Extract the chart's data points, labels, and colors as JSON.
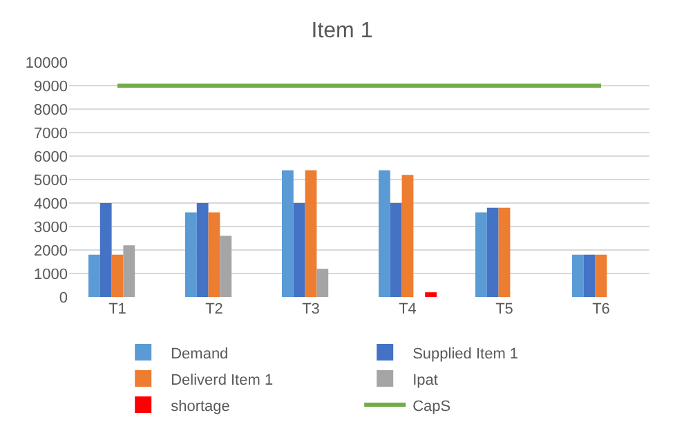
{
  "chart_data": {
    "type": "bar",
    "title": "Item 1",
    "categories": [
      "T1",
      "T2",
      "T3",
      "T4",
      "T5",
      "T6"
    ],
    "series": [
      {
        "name": "Demand",
        "color": "#5b9bd5",
        "values": [
          1800,
          3600,
          5400,
          5400,
          3600,
          1800
        ]
      },
      {
        "name": "Supplied Item 1",
        "color": "#4472c4",
        "values": [
          4000,
          4000,
          4000,
          4000,
          3800,
          1800
        ]
      },
      {
        "name": "Deliverd Item 1",
        "color": "#ed7d31",
        "values": [
          1800,
          3600,
          5400,
          5200,
          3800,
          1800
        ]
      },
      {
        "name": "Ipat",
        "color": "#a5a5a5",
        "values": [
          2200,
          2600,
          1200,
          0,
          0,
          0
        ]
      },
      {
        "name": "shortage",
        "color": "#ff0000",
        "values": [
          0,
          0,
          0,
          200,
          0,
          0
        ]
      },
      {
        "name": "CapS",
        "color": "#70ad47",
        "type": "line",
        "values": [
          9000,
          9000,
          9000,
          9000,
          9000,
          9000
        ]
      }
    ],
    "ylim": [
      0,
      10000
    ],
    "yticks": [
      0,
      1000,
      2000,
      3000,
      4000,
      5000,
      6000,
      7000,
      8000,
      9000,
      10000
    ],
    "grid": "y",
    "legend": "bottom",
    "marker": "none"
  }
}
